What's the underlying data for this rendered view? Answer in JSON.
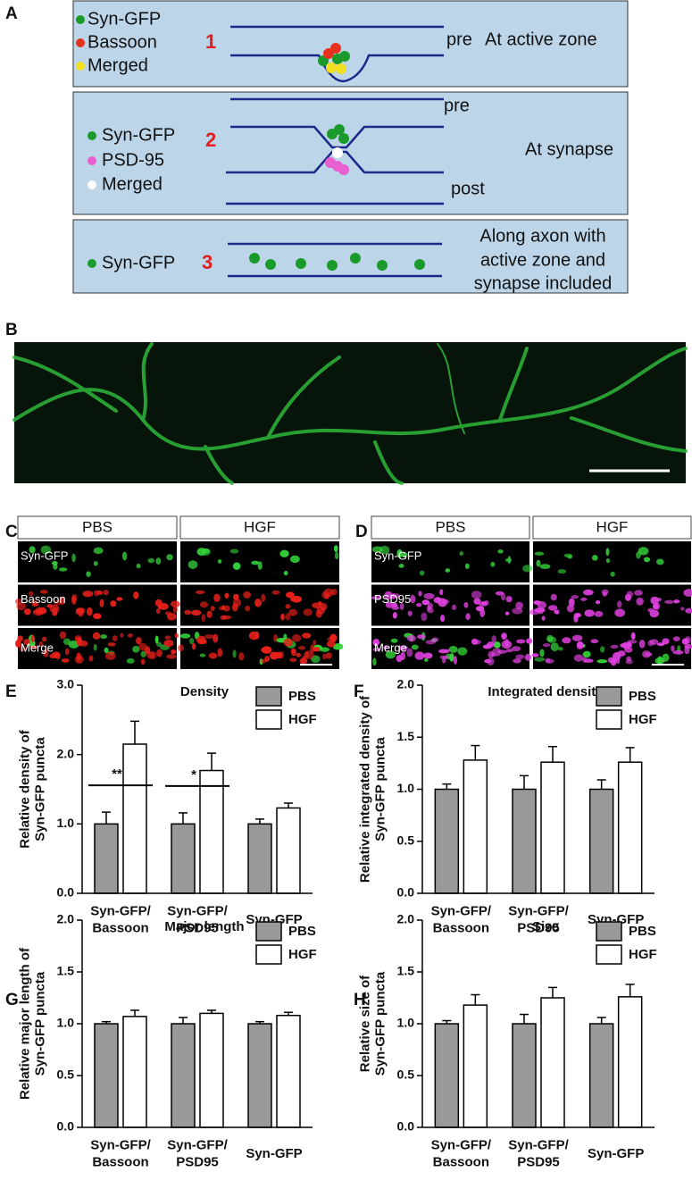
{
  "figure": {
    "panel_labels": [
      "A",
      "B",
      "C",
      "D",
      "E",
      "F",
      "G",
      "H"
    ]
  },
  "diagram": {
    "box1": {
      "legend": [
        "Syn-GFP",
        "Bassoon",
        "Merged"
      ],
      "number": "1",
      "side": "pre",
      "caption": "At active zone"
    },
    "box2": {
      "side_top": "pre",
      "legend": [
        "Syn-GFP",
        "PSD-95",
        "Merged"
      ],
      "number": "2",
      "caption": "At synapse",
      "side_bottom": "post"
    },
    "box3": {
      "legend": [
        "Syn-GFP"
      ],
      "number": "3",
      "caption": [
        "Along axon with",
        "active zone and",
        "synapse included"
      ]
    }
  },
  "images": {
    "C": {
      "columns": [
        "PBS",
        "HGF"
      ],
      "rows": [
        "Syn-GFP",
        "Bassoon",
        "Merge"
      ]
    },
    "D": {
      "columns": [
        "PBS",
        "HGF"
      ],
      "rows": [
        "Syn-GFP",
        "PSD95",
        "Merge"
      ]
    }
  },
  "chart_data": [
    {
      "type": "bar",
      "title": "Density",
      "ylabel": "Relative density of\nSyn-GFP puncta",
      "categories": [
        "Syn-GFP/\nBassoon",
        "Syn-GFP/\nPSD95",
        "Syn-GFP"
      ],
      "series": [
        {
          "name": "PBS",
          "color": "#999999",
          "values": [
            1.0,
            1.0,
            1.0
          ],
          "errors": [
            0.17,
            0.16,
            0.07
          ]
        },
        {
          "name": "HGF",
          "color": "#ffffff",
          "values": [
            2.15,
            1.77,
            1.23
          ],
          "errors": [
            0.33,
            0.25,
            0.07
          ]
        }
      ],
      "annotations": [
        "**",
        "*"
      ],
      "ylim": [
        0,
        3
      ],
      "yticks": [
        {
          "value": 0,
          "label": "0.0"
        },
        {
          "value": 1,
          "label": "1.0"
        },
        {
          "value": 2,
          "label": "2.0"
        },
        {
          "value": 3,
          "label": "3.0"
        }
      ]
    },
    {
      "type": "bar",
      "title": "Integrated density",
      "ylabel": "Relative integrated density of\nSyn-GFP puncta",
      "categories": [
        "Syn-GFP/\nBassoon",
        "Syn-GFP/\nPSD95",
        "Syn-GFP"
      ],
      "series": [
        {
          "name": "PBS",
          "color": "#999999",
          "values": [
            1.0,
            1.0,
            1.0
          ],
          "errors": [
            0.05,
            0.13,
            0.09
          ]
        },
        {
          "name": "HGF",
          "color": "#ffffff",
          "values": [
            1.28,
            1.26,
            1.26
          ],
          "errors": [
            0.14,
            0.15,
            0.14
          ]
        }
      ],
      "ylim": [
        0,
        2
      ],
      "yticks": [
        {
          "value": 0,
          "label": "0.0"
        },
        0.5,
        {
          "value": 1,
          "label": "1.0"
        },
        1.5,
        {
          "value": 2,
          "label": "2.0"
        }
      ]
    },
    {
      "type": "bar",
      "title": "Major length",
      "ylabel": "Relative major length of\nSyn-GFP puncta",
      "categories": [
        "Syn-GFP/\nBassoon",
        "Syn-GFP/\nPSD95",
        "Syn-GFP"
      ],
      "series": [
        {
          "name": "PBS",
          "color": "#999999",
          "values": [
            1.0,
            1.0,
            1.0
          ],
          "errors": [
            0.02,
            0.06,
            0.02
          ]
        },
        {
          "name": "HGF",
          "color": "#ffffff",
          "values": [
            1.07,
            1.1,
            1.08
          ],
          "errors": [
            0.06,
            0.03,
            0.03
          ]
        }
      ],
      "ylim": [
        0,
        2
      ],
      "yticks": [
        {
          "value": 0,
          "label": "0.0"
        },
        0.5,
        {
          "value": 1,
          "label": "1.0"
        },
        1.5,
        {
          "value": 2,
          "label": "2.0"
        }
      ]
    },
    {
      "type": "bar",
      "title": "Size",
      "ylabel": "Relative size of\nSyn-GFP puncta",
      "categories": [
        "Syn-GFP/\nBassoon",
        "Syn-GFP/\nPSD95",
        "Syn-GFP"
      ],
      "series": [
        {
          "name": "PBS",
          "color": "#999999",
          "values": [
            1.0,
            1.0,
            1.0
          ],
          "errors": [
            0.03,
            0.09,
            0.06
          ]
        },
        {
          "name": "HGF",
          "color": "#ffffff",
          "values": [
            1.18,
            1.25,
            1.26
          ],
          "errors": [
            0.1,
            0.1,
            0.12
          ]
        }
      ],
      "ylim": [
        0,
        2
      ],
      "yticks": [
        {
          "value": 0,
          "label": "0.0"
        },
        0.5,
        {
          "value": 1,
          "label": "1.0"
        },
        1.5,
        {
          "value": 2,
          "label": "2.0"
        }
      ]
    }
  ]
}
